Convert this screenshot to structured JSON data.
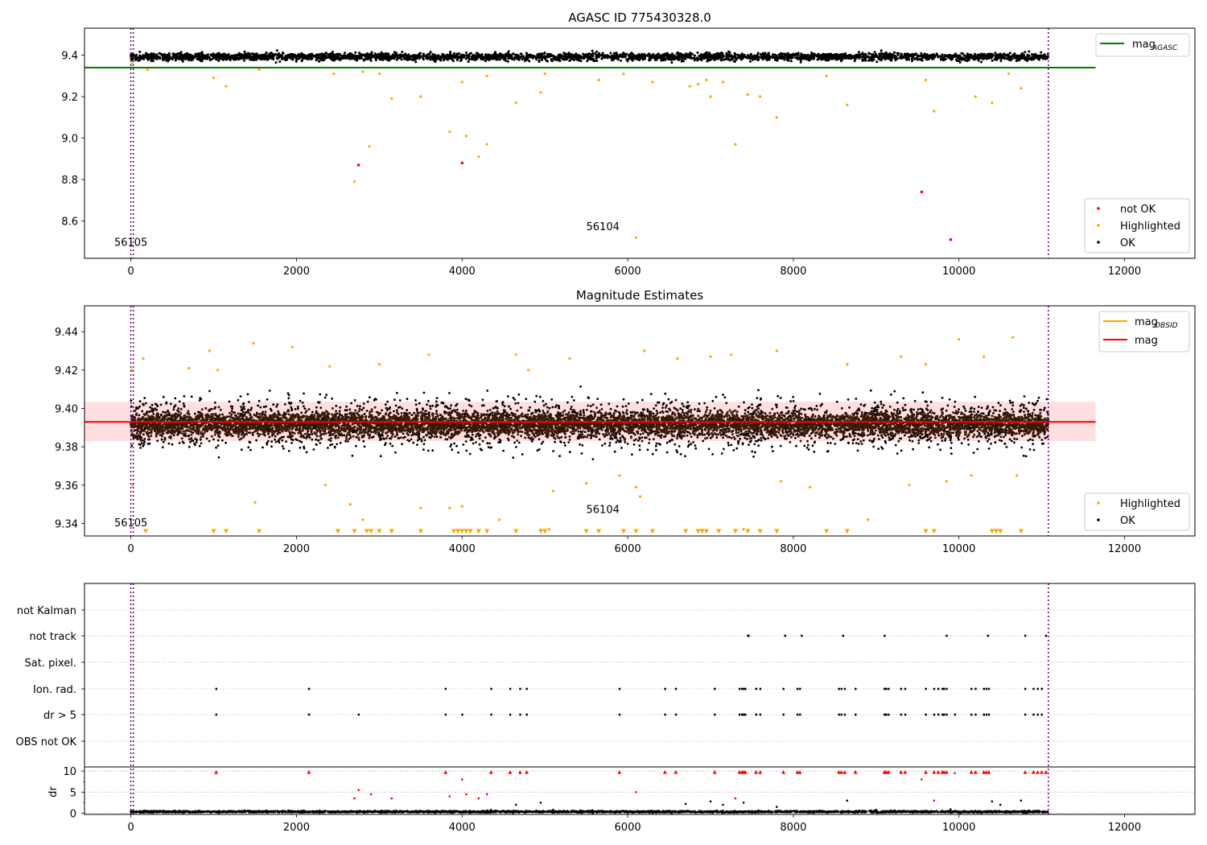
{
  "figure": {
    "width": 1500,
    "height": 1050
  },
  "chart_data": [
    {
      "panel": "top",
      "type": "scatter",
      "title": "AGASC ID 775430328.0",
      "xlim": [
        -560,
        12850
      ],
      "ylim": [
        8.42,
        9.53
      ],
      "xticks": [
        0,
        2000,
        4000,
        6000,
        8000,
        10000,
        12000
      ],
      "yticks": [
        8.6,
        8.8,
        9.0,
        9.2,
        9.4
      ],
      "ytick_labels": [
        "8.6",
        "8.8",
        "9.0",
        "9.2",
        "9.4"
      ],
      "ok_band": {
        "x": [
          0,
          11080
        ],
        "center": 9.392,
        "halfwidth": 0.025
      },
      "lines": [
        {
          "name": "mag_AGASC",
          "name_main": "mag",
          "name_sub": "AGASC",
          "color": "#008000",
          "y": 9.34,
          "x": [
            -560,
            11650
          ]
        }
      ],
      "vlines": {
        "color": "#800080",
        "x": [
          0,
          30,
          11080
        ]
      },
      "obsid_labels": [
        {
          "text": "56105",
          "x": 0,
          "y": 8.48
        },
        {
          "text": "56104",
          "x": 5700,
          "y": 8.555
        }
      ],
      "legends": [
        {
          "placement": "upper-right",
          "entries": [
            {
              "label_main": "mag",
              "label_sub": "AGASC",
              "kind": "line",
              "color": "#008000"
            }
          ]
        },
        {
          "placement": "lower-right",
          "entries": [
            {
              "label": "not OK",
              "kind": "marker",
              "color": "#ff0000"
            },
            {
              "label": "Highlighted",
              "kind": "marker",
              "color": "#ffa500"
            },
            {
              "label": "OK",
              "kind": "marker",
              "color": "#000000"
            }
          ]
        }
      ],
      "series": [
        {
          "name": "Highlighted",
          "color": "#ffa500",
          "points": [
            [
              15,
              9.36
            ],
            [
              200,
              9.33
            ],
            [
              1000,
              9.29
            ],
            [
              1150,
              9.25
            ],
            [
              1550,
              9.33
            ],
            [
              2450,
              9.31
            ],
            [
              2700,
              8.79
            ],
            [
              2800,
              9.32
            ],
            [
              2880,
              8.96
            ],
            [
              3000,
              9.31
            ],
            [
              3150,
              9.19
            ],
            [
              3500,
              9.2
            ],
            [
              3850,
              9.03
            ],
            [
              4050,
              9.01
            ],
            [
              4000,
              9.27
            ],
            [
              4200,
              8.91
            ],
            [
              4300,
              8.97
            ],
            [
              4300,
              9.3
            ],
            [
              4650,
              9.17
            ],
            [
              4950,
              9.22
            ],
            [
              5000,
              9.31
            ],
            [
              5650,
              9.28
            ],
            [
              5950,
              9.31
            ],
            [
              6100,
              8.52
            ],
            [
              6300,
              9.27
            ],
            [
              6750,
              9.25
            ],
            [
              6850,
              9.26
            ],
            [
              6950,
              9.28
            ],
            [
              7000,
              9.2
            ],
            [
              7150,
              9.27
            ],
            [
              7300,
              8.97
            ],
            [
              7450,
              9.21
            ],
            [
              7600,
              9.2
            ],
            [
              7800,
              9.1
            ],
            [
              8400,
              9.3
            ],
            [
              8650,
              9.16
            ],
            [
              9600,
              9.28
            ],
            [
              9700,
              9.13
            ],
            [
              10200,
              9.2
            ],
            [
              10400,
              9.17
            ],
            [
              10600,
              9.31
            ],
            [
              10750,
              9.24
            ]
          ]
        },
        {
          "name": "not OK",
          "color": "#ff0000",
          "points": [
            [
              2750,
              8.87
            ],
            [
              4000,
              8.88
            ],
            [
              9550,
              8.74
            ],
            [
              9900,
              8.51
            ]
          ]
        }
      ]
    },
    {
      "panel": "middle",
      "type": "scatter",
      "title": "Magnitude Estimates",
      "xlim": [
        -560,
        12850
      ],
      "ylim": [
        9.3335,
        9.4535
      ],
      "xticks": [
        0,
        2000,
        4000,
        6000,
        8000,
        10000,
        12000
      ],
      "yticks": [
        9.34,
        9.36,
        9.38,
        9.4,
        9.42,
        9.44
      ],
      "ytick_labels": [
        "9.34",
        "9.36",
        "9.38",
        "9.40",
        "9.42",
        "9.44"
      ],
      "ok_band": {
        "x": [
          0,
          11080
        ],
        "center": 9.392,
        "halfwidth": 0.01
      },
      "mean_band": {
        "color": "#ffc0c0",
        "y": [
          9.383,
          9.4035
        ],
        "x": [
          -560,
          11650
        ]
      },
      "lines": [
        {
          "name": "mag",
          "color": "#ff0000",
          "y": 9.393,
          "x": [
            -560,
            11650
          ]
        }
      ],
      "vlines": {
        "color": "#800080",
        "x": [
          0,
          30,
          11080
        ]
      },
      "obsid_labels": [
        {
          "text": "56105",
          "x": 0,
          "y": 9.3385
        },
        {
          "text": "56104",
          "x": 5700,
          "y": 9.3455
        }
      ],
      "legends": [
        {
          "placement": "upper-right",
          "entries": [
            {
              "label_main": "mag",
              "label_sub": "OBSID",
              "kind": "line",
              "color": "#ffa500"
            },
            {
              "label": "mag",
              "kind": "line",
              "color": "#ff0000"
            }
          ]
        },
        {
          "placement": "lower-right",
          "entries": [
            {
              "label": "Highlighted",
              "kind": "marker",
              "color": "#ffa500"
            },
            {
              "label": "OK",
              "kind": "marker",
              "color": "#000000"
            }
          ]
        }
      ],
      "series": [
        {
          "name": "Highlighted",
          "color": "#ffa500",
          "points": [
            [
              10,
              9.42
            ],
            [
              20,
              9.36
            ],
            [
              150,
              9.426
            ],
            [
              700,
              9.421
            ],
            [
              950,
              9.43
            ],
            [
              1050,
              9.42
            ],
            [
              1480,
              9.434
            ],
            [
              1500,
              9.351
            ],
            [
              1950,
              9.432
            ],
            [
              2350,
              9.36
            ],
            [
              2400,
              9.422
            ],
            [
              2650,
              9.35
            ],
            [
              2800,
              9.342
            ],
            [
              3000,
              9.423
            ],
            [
              3500,
              9.348
            ],
            [
              3600,
              9.428
            ],
            [
              3850,
              9.348
            ],
            [
              4000,
              9.349
            ],
            [
              4450,
              9.342
            ],
            [
              4650,
              9.428
            ],
            [
              4800,
              9.42
            ],
            [
              5050,
              9.337
            ],
            [
              5100,
              9.357
            ],
            [
              5300,
              9.426
            ],
            [
              5500,
              9.361
            ],
            [
              5900,
              9.365
            ],
            [
              6100,
              9.359
            ],
            [
              6150,
              9.354
            ],
            [
              6200,
              9.43
            ],
            [
              6600,
              9.426
            ],
            [
              7000,
              9.427
            ],
            [
              7250,
              9.428
            ],
            [
              7400,
              9.337
            ],
            [
              7800,
              9.43
            ],
            [
              7850,
              9.362
            ],
            [
              8200,
              9.359
            ],
            [
              8650,
              9.423
            ],
            [
              8900,
              9.342
            ],
            [
              9300,
              9.427
            ],
            [
              9400,
              9.36
            ],
            [
              9600,
              9.423
            ],
            [
              9850,
              9.362
            ],
            [
              10000,
              9.436
            ],
            [
              10150,
              9.365
            ],
            [
              10300,
              9.427
            ],
            [
              10650,
              9.437
            ],
            [
              10700,
              9.365
            ]
          ]
        },
        {
          "name": "Highlighted (below range)",
          "color": "#ffa500",
          "marker": "triangle-down",
          "y": 9.335,
          "x": [
            180,
            1000,
            1150,
            1550,
            2500,
            2700,
            2850,
            2900,
            3000,
            3150,
            3500,
            3900,
            3950,
            4000,
            4050,
            4100,
            4200,
            4300,
            4650,
            4950,
            5000,
            5500,
            5650,
            5950,
            6100,
            6300,
            6700,
            6850,
            6900,
            6950,
            7100,
            7300,
            7450,
            7600,
            7800,
            8400,
            8650,
            9600,
            9700,
            10400,
            10450,
            10500,
            10750
          ]
        }
      ]
    },
    {
      "panel": "bottom-flags",
      "type": "scatter",
      "xlim": [
        -560,
        12850
      ],
      "flag_rows": [
        "not Kalman",
        "not track",
        "Sat. pixel.",
        "Ion. rad.",
        "dr > 5",
        "OBS not OK"
      ],
      "flags": {
        "not track": [
          7450,
          7460,
          7900,
          8100,
          8600,
          9100,
          9850,
          10350,
          10800,
          11050
        ],
        "Ion. rad.": [
          1030,
          2150,
          3800,
          4350,
          4580,
          4700,
          4780,
          5900,
          6450,
          6580,
          7050,
          7350,
          7380,
          7400,
          7420,
          7550,
          7600,
          7880,
          8050,
          8080,
          8550,
          8580,
          8620,
          8750,
          9100,
          9120,
          9150,
          9300,
          9350,
          9600,
          9700,
          9750,
          9800,
          9820,
          9850,
          10150,
          10200,
          10300,
          10330,
          10360,
          10800,
          10900,
          10950,
          11000
        ],
        "dr > 5": [
          1030,
          2150,
          2750,
          3800,
          4000,
          4350,
          4580,
          4700,
          4780,
          5900,
          6450,
          6580,
          7050,
          7350,
          7380,
          7400,
          7420,
          7550,
          7600,
          7880,
          8050,
          8080,
          8550,
          8580,
          8620,
          8750,
          9100,
          9120,
          9150,
          9300,
          9350,
          9600,
          9700,
          9750,
          9800,
          9820,
          9850,
          9950,
          10150,
          10200,
          10300,
          10330,
          10360,
          10800,
          10900,
          10950,
          11000
        ]
      },
      "vlines": {
        "color": "#800080",
        "x": [
          0,
          30,
          11080
        ]
      }
    },
    {
      "panel": "bottom-dr",
      "type": "scatter",
      "xlim": [
        -560,
        12850
      ],
      "ylim": [
        -0.3,
        10.8
      ],
      "ylabel": "dr",
      "xticks": [
        0,
        2000,
        4000,
        6000,
        8000,
        10000,
        12000
      ],
      "yticks": [
        0,
        5,
        10
      ],
      "ytick_labels": [
        "0",
        "5",
        "10"
      ],
      "dr_base": {
        "x": [
          0,
          11080
        ],
        "center": 0.35,
        "halfwidth": 0.3
      },
      "series": [
        {
          "name": "dr OK",
          "color": "#000000",
          "points": [
            [
              4350,
              0.8
            ],
            [
              4650,
              2.0
            ],
            [
              4950,
              2.5
            ],
            [
              5100,
              0.8
            ],
            [
              6700,
              2.2
            ],
            [
              7000,
              2.8
            ],
            [
              7150,
              2.0
            ],
            [
              7400,
              2.5
            ],
            [
              7800,
              1.5
            ],
            [
              8650,
              3.0
            ],
            [
              9000,
              0.8
            ],
            [
              9900,
              0.9
            ],
            [
              10400,
              2.8
            ],
            [
              10500,
              2.0
            ],
            [
              10750,
              3.0
            ]
          ]
        },
        {
          "name": "dr not OK",
          "color": "#ff0000",
          "marker": "dot",
          "points": [
            [
              2700,
              3.5
            ],
            [
              2750,
              5.5
            ],
            [
              2900,
              4.5
            ],
            [
              3150,
              3.5
            ],
            [
              3850,
              4.0
            ],
            [
              4000,
              8.0
            ],
            [
              4050,
              4.5
            ],
            [
              4200,
              3.5
            ],
            [
              4300,
              4.5
            ],
            [
              6100,
              5.0
            ],
            [
              7300,
              3.5
            ],
            [
              9550,
              8.0
            ],
            [
              9700,
              3.0
            ],
            [
              9950,
              9.5
            ]
          ]
        },
        {
          "name": "dr capped",
          "color": "#ff0000",
          "marker": "triangle-up",
          "y": 9.8,
          "x": [
            1030,
            2150,
            3800,
            4350,
            4580,
            4700,
            4780,
            5900,
            6450,
            6580,
            7050,
            7350,
            7380,
            7400,
            7420,
            7550,
            7600,
            7880,
            8050,
            8080,
            8550,
            8580,
            8620,
            8750,
            9100,
            9120,
            9150,
            9300,
            9350,
            9600,
            9700,
            9750,
            9800,
            9820,
            9850,
            10150,
            10200,
            10300,
            10330,
            10360,
            10800,
            10900,
            10950,
            11000,
            11050
          ]
        }
      ],
      "vlines": {
        "color": "#800080",
        "x": [
          0,
          30,
          11080
        ]
      }
    }
  ]
}
